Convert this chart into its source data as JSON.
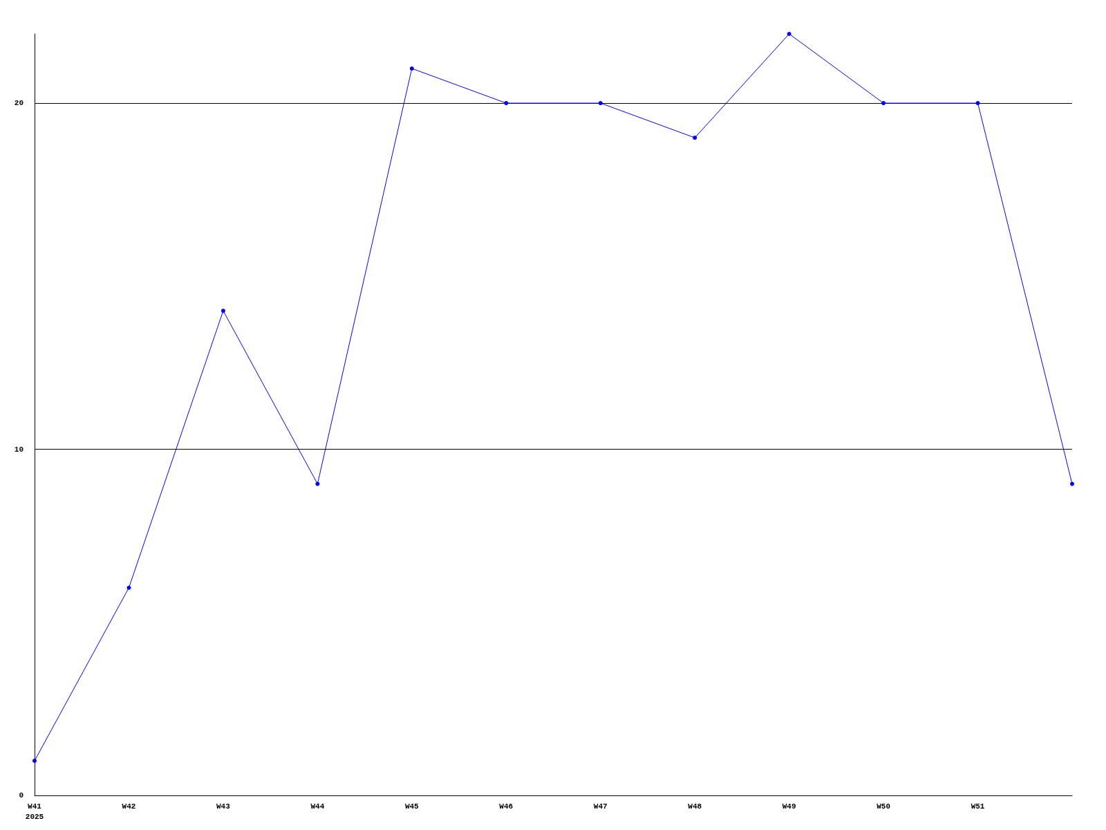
{
  "chart_data": {
    "type": "line",
    "categories": [
      "W41\n2025",
      "W42",
      "W43",
      "W44",
      "W45",
      "W46",
      "W47",
      "W48",
      "W49",
      "W50",
      "W51",
      null
    ],
    "series": [
      {
        "color": "#0000ff",
        "values": [
          1,
          6,
          14,
          9,
          21,
          20,
          20,
          19,
          22,
          20,
          20,
          9
        ]
      }
    ],
    "ylim": [
      0,
      22
    ],
    "yticks": [
      0,
      10,
      20
    ],
    "grid": "y",
    "marker": "circle",
    "line_style": "solid"
  }
}
